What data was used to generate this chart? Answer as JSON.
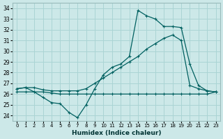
{
  "xlabel": "Humidex (Indice chaleur)",
  "xlim": [
    -0.5,
    23.5
  ],
  "ylim": [
    23.5,
    34.5
  ],
  "yticks": [
    24,
    25,
    26,
    27,
    28,
    29,
    30,
    31,
    32,
    33,
    34
  ],
  "xticks": [
    0,
    1,
    2,
    3,
    4,
    5,
    6,
    7,
    8,
    9,
    10,
    11,
    12,
    13,
    14,
    15,
    16,
    17,
    18,
    19,
    20,
    21,
    22,
    23
  ],
  "bg_color": "#cce8e8",
  "grid_color": "#aad4d4",
  "line_color": "#006060",
  "curve1_x": [
    0,
    1,
    2,
    3,
    4,
    5,
    6,
    7,
    8,
    9,
    10,
    11,
    12,
    13,
    14,
    15,
    16,
    17,
    18,
    19,
    20,
    21,
    22,
    23
  ],
  "curve1_y": [
    26.5,
    26.6,
    26.2,
    25.7,
    25.2,
    25.1,
    24.3,
    23.8,
    25.0,
    26.5,
    27.8,
    28.5,
    28.8,
    29.5,
    33.8,
    33.3,
    33.0,
    32.3,
    32.3,
    32.2,
    28.8,
    26.8,
    26.3,
    26.2
  ],
  "curve2_x": [
    0,
    1,
    2,
    3,
    4,
    5,
    6,
    7,
    8,
    9,
    10,
    11,
    12,
    13,
    14,
    15,
    16,
    17,
    18,
    19,
    20,
    21,
    22,
    23
  ],
  "curve2_y": [
    26.2,
    26.2,
    26.2,
    26.2,
    26.1,
    26.0,
    26.0,
    26.0,
    26.0,
    26.0,
    26.0,
    26.0,
    26.0,
    26.0,
    26.0,
    26.0,
    26.0,
    26.0,
    26.0,
    26.0,
    26.0,
    26.0,
    26.0,
    26.2
  ],
  "curve3_x": [
    0,
    1,
    2,
    3,
    4,
    5,
    6,
    7,
    8,
    9,
    10,
    11,
    12,
    13,
    14,
    15,
    16,
    17,
    18,
    19,
    20,
    21,
    22,
    23
  ],
  "curve3_y": [
    26.5,
    26.6,
    26.6,
    26.4,
    26.3,
    26.3,
    26.3,
    26.3,
    26.5,
    27.0,
    27.5,
    28.0,
    28.5,
    29.0,
    29.5,
    30.2,
    30.7,
    31.2,
    31.5,
    31.0,
    26.8,
    26.5,
    26.3,
    26.2
  ]
}
